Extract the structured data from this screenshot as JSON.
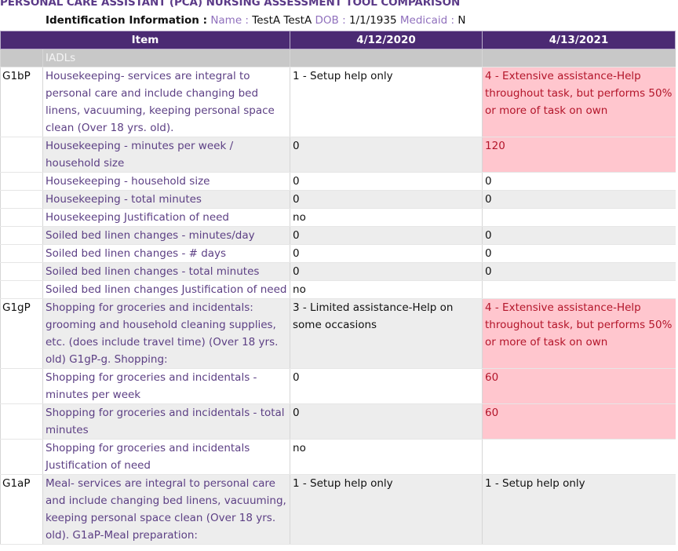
{
  "header": {
    "title": "PERSONAL CARE ASSISTANT (PCA) NURSING ASSESSMENT TOOL COMPARISON",
    "identification_label": "Identification Information :",
    "name_label": "Name :",
    "name_value": "TestA TestA",
    "dob_label": "DOB :",
    "dob_value": "1/1/1935",
    "medicaid_label": "Medicaid :",
    "medicaid_value": "N"
  },
  "table": {
    "columns": [
      "Item",
      "4/12/2020",
      "4/13/2021"
    ],
    "section_label": "IADLs",
    "rows": [
      {
        "code": "G1bP",
        "item": "Housekeeping- services are integral to personal care and include changing bed linens, vacuuming, keeping personal space clean (Over 18 yrs. old).",
        "d1": "1 - Setup help only",
        "d2": "4 - Extensive assistance-Help throughout task, but performs 50% or more of task on own",
        "changed": true
      },
      {
        "code": "",
        "item": "Housekeeping - minutes per week / household size",
        "d1": "0",
        "d2": "120",
        "changed": true
      },
      {
        "code": "",
        "item": "Housekeeping -  household size",
        "d1": "0",
        "d2": "0",
        "changed": false
      },
      {
        "code": "",
        "item": "Housekeeping - total minutes",
        "d1": "0",
        "d2": "0",
        "changed": false
      },
      {
        "code": "",
        "item": "Housekeeping Justification of need",
        "d1": "no",
        "d2": "",
        "changed": false
      },
      {
        "code": "",
        "item": "Soiled bed linen changes - minutes/day",
        "d1": "0",
        "d2": "0",
        "changed": false
      },
      {
        "code": "",
        "item": "Soiled bed linen changes - # days",
        "d1": "0",
        "d2": "0",
        "changed": false
      },
      {
        "code": "",
        "item": "Soiled bed linen changes - total minutes",
        "d1": "0",
        "d2": "0",
        "changed": false
      },
      {
        "code": "",
        "item": "Soiled bed linen changes Justification of need",
        "d1": "no",
        "d2": "",
        "changed": false
      },
      {
        "code": "G1gP",
        "item": "Shopping for groceries and incidentals: grooming and household cleaning supplies, etc. (does include travel time) (Over 18 yrs. old) G1gP-g. Shopping:",
        "d1": "3 - Limited assistance-Help on some occasions",
        "d2": "4 - Extensive assistance-Help throughout task, but performs 50% or more of task on own",
        "changed": true
      },
      {
        "code": "",
        "item": "Shopping for groceries and incidentals - minutes per week",
        "d1": "0",
        "d2": "60",
        "changed": true
      },
      {
        "code": "",
        "item": "Shopping for groceries and incidentals - total minutes",
        "d1": "0",
        "d2": "60",
        "changed": true
      },
      {
        "code": "",
        "item": "Shopping for groceries and incidentals Justification of need",
        "d1": "no",
        "d2": "",
        "changed": false
      },
      {
        "code": "G1aP",
        "item": "Meal- services are integral to personal care and include changing bed linens, vacuuming, keeping personal space clean (Over 18 yrs. old). G1aP-Meal preparation:",
        "d1": "1 - Setup help only",
        "d2": "1 - Setup help only",
        "changed": false
      }
    ]
  }
}
